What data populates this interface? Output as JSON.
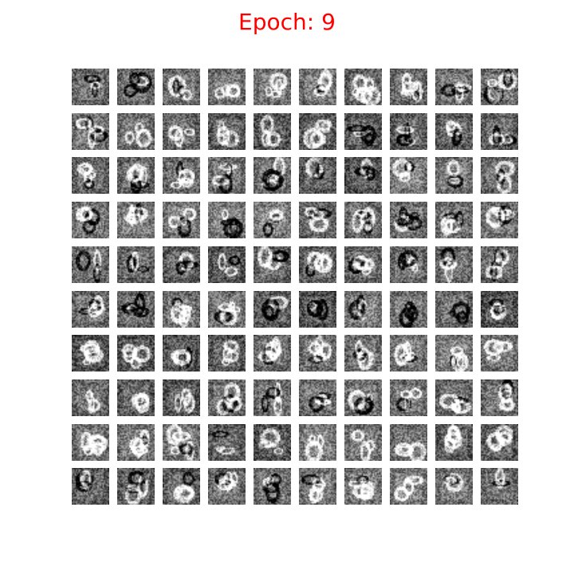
{
  "title": "Epoch: 9",
  "title_color": "#ff0000",
  "grid": {
    "rows": 10,
    "cols": 10,
    "image_style": "grayscale noisy generated handwritten digit samples"
  }
}
